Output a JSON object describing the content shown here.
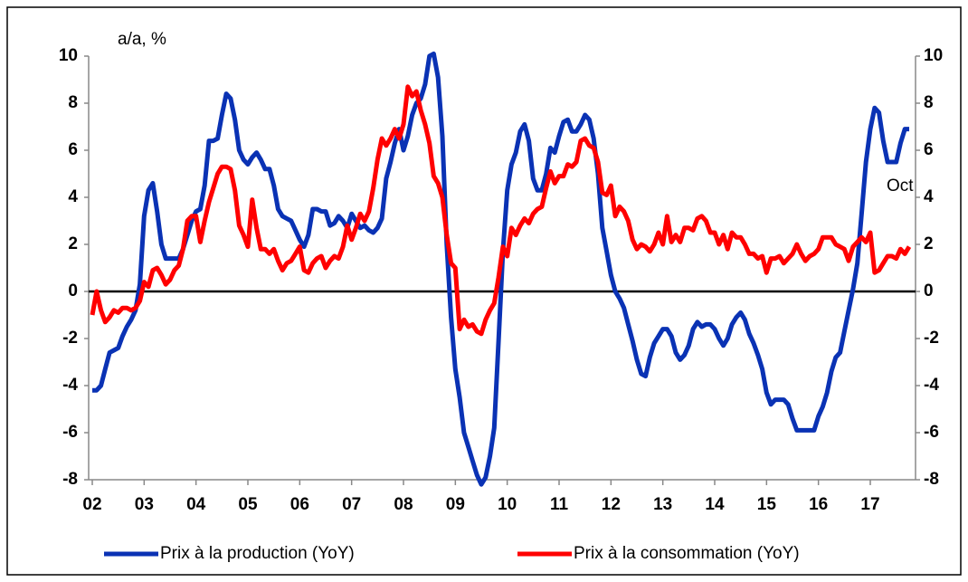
{
  "chart_data": {
    "type": "line",
    "y_label": "a/a, %",
    "annotation": "Oct",
    "categories": [
      "02",
      null,
      null,
      null,
      null,
      null,
      null,
      null,
      null,
      null,
      null,
      null,
      "03",
      null,
      null,
      null,
      null,
      null,
      null,
      null,
      null,
      null,
      null,
      null,
      "04",
      null,
      null,
      null,
      null,
      null,
      null,
      null,
      null,
      null,
      null,
      null,
      "05",
      null,
      null,
      null,
      null,
      null,
      null,
      null,
      null,
      null,
      null,
      null,
      "06",
      null,
      null,
      null,
      null,
      null,
      null,
      null,
      null,
      null,
      null,
      null,
      "07",
      null,
      null,
      null,
      null,
      null,
      null,
      null,
      null,
      null,
      null,
      null,
      "08",
      null,
      null,
      null,
      null,
      null,
      null,
      null,
      null,
      null,
      null,
      null,
      "09",
      null,
      null,
      null,
      null,
      null,
      null,
      null,
      null,
      null,
      null,
      null,
      "10",
      null,
      null,
      null,
      null,
      null,
      null,
      null,
      null,
      null,
      null,
      null,
      "11",
      null,
      null,
      null,
      null,
      null,
      null,
      null,
      null,
      null,
      null,
      null,
      "12",
      null,
      null,
      null,
      null,
      null,
      null,
      null,
      null,
      null,
      null,
      null,
      "13",
      null,
      null,
      null,
      null,
      null,
      null,
      null,
      null,
      null,
      null,
      null,
      "14",
      null,
      null,
      null,
      null,
      null,
      null,
      null,
      null,
      null,
      null,
      null,
      "15",
      null,
      null,
      null,
      null,
      null,
      null,
      null,
      null,
      null,
      null,
      null,
      "16",
      null,
      null,
      null,
      null,
      null,
      null,
      null,
      null,
      null,
      null,
      null,
      "17",
      null,
      null,
      null,
      null,
      null,
      null,
      null,
      null,
      null
    ],
    "series": [
      {
        "name": "Prix à la production (YoY)",
        "color": "#0a32b4",
        "values": [
          -4.2,
          -4.2,
          -4.0,
          -3.3,
          -2.6,
          -2.5,
          -2.4,
          -1.9,
          -1.5,
          -1.2,
          -0.8,
          0.3,
          3.2,
          4.3,
          4.6,
          3.4,
          2.0,
          1.4,
          1.4,
          1.4,
          1.4,
          1.8,
          2.4,
          3.0,
          3.4,
          3.5,
          4.5,
          6.4,
          6.4,
          6.5,
          7.5,
          8.4,
          8.2,
          7.3,
          6.0,
          5.6,
          5.4,
          5.7,
          5.9,
          5.6,
          5.2,
          5.2,
          4.5,
          3.5,
          3.2,
          3.1,
          3.0,
          2.6,
          2.2,
          1.9,
          2.4,
          3.5,
          3.5,
          3.4,
          3.4,
          2.8,
          2.9,
          3.2,
          3.0,
          2.7,
          3.3,
          3.0,
          2.7,
          2.8,
          2.6,
          2.5,
          2.7,
          3.1,
          4.8,
          5.5,
          6.3,
          6.9,
          6.0,
          6.6,
          7.5,
          8.0,
          8.2,
          8.8,
          10.0,
          10.1,
          9.1,
          6.6,
          2.0,
          -1.1,
          -3.3,
          -4.5,
          -6.0,
          -6.6,
          -7.2,
          -7.8,
          -8.2,
          -7.9,
          -7.0,
          -5.8,
          -2.1,
          1.7,
          4.3,
          5.4,
          5.9,
          6.8,
          7.1,
          6.4,
          4.8,
          4.3,
          4.3,
          5.0,
          6.1,
          5.9,
          6.6,
          7.2,
          7.3,
          6.8,
          6.8,
          7.1,
          7.5,
          7.3,
          6.5,
          5.0,
          2.7,
          1.7,
          0.7,
          0.0,
          -0.3,
          -0.7,
          -1.4,
          -2.1,
          -2.9,
          -3.5,
          -3.6,
          -2.8,
          -2.2,
          -1.9,
          -1.6,
          -1.6,
          -1.9,
          -2.6,
          -2.9,
          -2.7,
          -2.3,
          -1.6,
          -1.3,
          -1.5,
          -1.4,
          -1.4,
          -1.6,
          -2.0,
          -2.3,
          -2.0,
          -1.4,
          -1.1,
          -0.9,
          -1.2,
          -1.8,
          -2.2,
          -2.7,
          -3.3,
          -4.3,
          -4.8,
          -4.6,
          -4.6,
          -4.6,
          -4.8,
          -5.4,
          -5.9,
          -5.9,
          -5.9,
          -5.9,
          -5.9,
          -5.3,
          -4.9,
          -4.3,
          -3.4,
          -2.8,
          -2.6,
          -1.7,
          -0.8,
          0.1,
          1.2,
          3.3,
          5.5,
          6.9,
          7.8,
          7.6,
          6.4,
          5.5,
          5.5,
          5.5,
          6.3,
          6.9,
          6.9
        ]
      },
      {
        "name": "Prix à la consommation (YoY)",
        "color": "#ff0000",
        "values": [
          -1.0,
          0.0,
          -0.8,
          -1.3,
          -1.1,
          -0.8,
          -0.9,
          -0.7,
          -0.7,
          -0.8,
          -0.7,
          -0.4,
          0.4,
          0.2,
          0.9,
          1.0,
          0.7,
          0.3,
          0.5,
          0.9,
          1.1,
          1.8,
          3.0,
          3.2,
          3.2,
          2.1,
          3.0,
          3.8,
          4.4,
          5.0,
          5.3,
          5.3,
          5.2,
          4.3,
          2.8,
          2.4,
          1.9,
          3.9,
          2.7,
          1.8,
          1.8,
          1.6,
          1.8,
          1.3,
          0.9,
          1.2,
          1.3,
          1.6,
          1.9,
          0.9,
          0.8,
          1.2,
          1.4,
          1.5,
          1.0,
          1.3,
          1.5,
          1.4,
          1.9,
          2.8,
          2.2,
          2.7,
          3.3,
          3.0,
          3.4,
          4.4,
          5.6,
          6.5,
          6.2,
          6.5,
          6.9,
          6.5,
          7.1,
          8.7,
          8.3,
          8.5,
          7.7,
          7.1,
          6.3,
          4.9,
          4.6,
          4.0,
          2.4,
          1.2,
          1.0,
          -1.6,
          -1.2,
          -1.5,
          -1.4,
          -1.7,
          -1.8,
          -1.2,
          -0.8,
          -0.5,
          0.6,
          1.9,
          1.5,
          2.7,
          2.4,
          2.8,
          3.1,
          2.9,
          3.3,
          3.5,
          3.6,
          4.4,
          5.1,
          4.6,
          4.9,
          4.9,
          5.4,
          5.3,
          5.5,
          6.4,
          6.5,
          6.2,
          6.1,
          5.5,
          4.2,
          4.1,
          4.5,
          3.2,
          3.6,
          3.4,
          3.0,
          2.2,
          1.8,
          2.0,
          1.9,
          1.7,
          2.0,
          2.5,
          2.0,
          3.2,
          2.1,
          2.4,
          2.1,
          2.7,
          2.7,
          2.6,
          3.1,
          3.2,
          3.0,
          2.5,
          2.5,
          2.0,
          2.4,
          1.8,
          2.5,
          2.3,
          2.3,
          2.0,
          1.6,
          1.6,
          1.4,
          1.5,
          0.8,
          1.4,
          1.4,
          1.5,
          1.2,
          1.4,
          1.6,
          2.0,
          1.6,
          1.3,
          1.5,
          1.6,
          1.8,
          2.3,
          2.3,
          2.3,
          2.0,
          1.9,
          1.8,
          1.3,
          1.9,
          2.1,
          2.3,
          2.1,
          2.5,
          0.8,
          0.9,
          1.2,
          1.5,
          1.5,
          1.4,
          1.8,
          1.6,
          1.9
        ]
      }
    ],
    "ylim": [
      -8,
      10
    ],
    "yticks": [
      -8,
      -6,
      -4,
      -2,
      0,
      2,
      4,
      6,
      8,
      10
    ],
    "y2lim": [
      -8,
      10
    ],
    "y2ticks": [
      -8,
      -6,
      -4,
      -2,
      0,
      2,
      4,
      6,
      8,
      10
    ],
    "legend": "bottom"
  }
}
